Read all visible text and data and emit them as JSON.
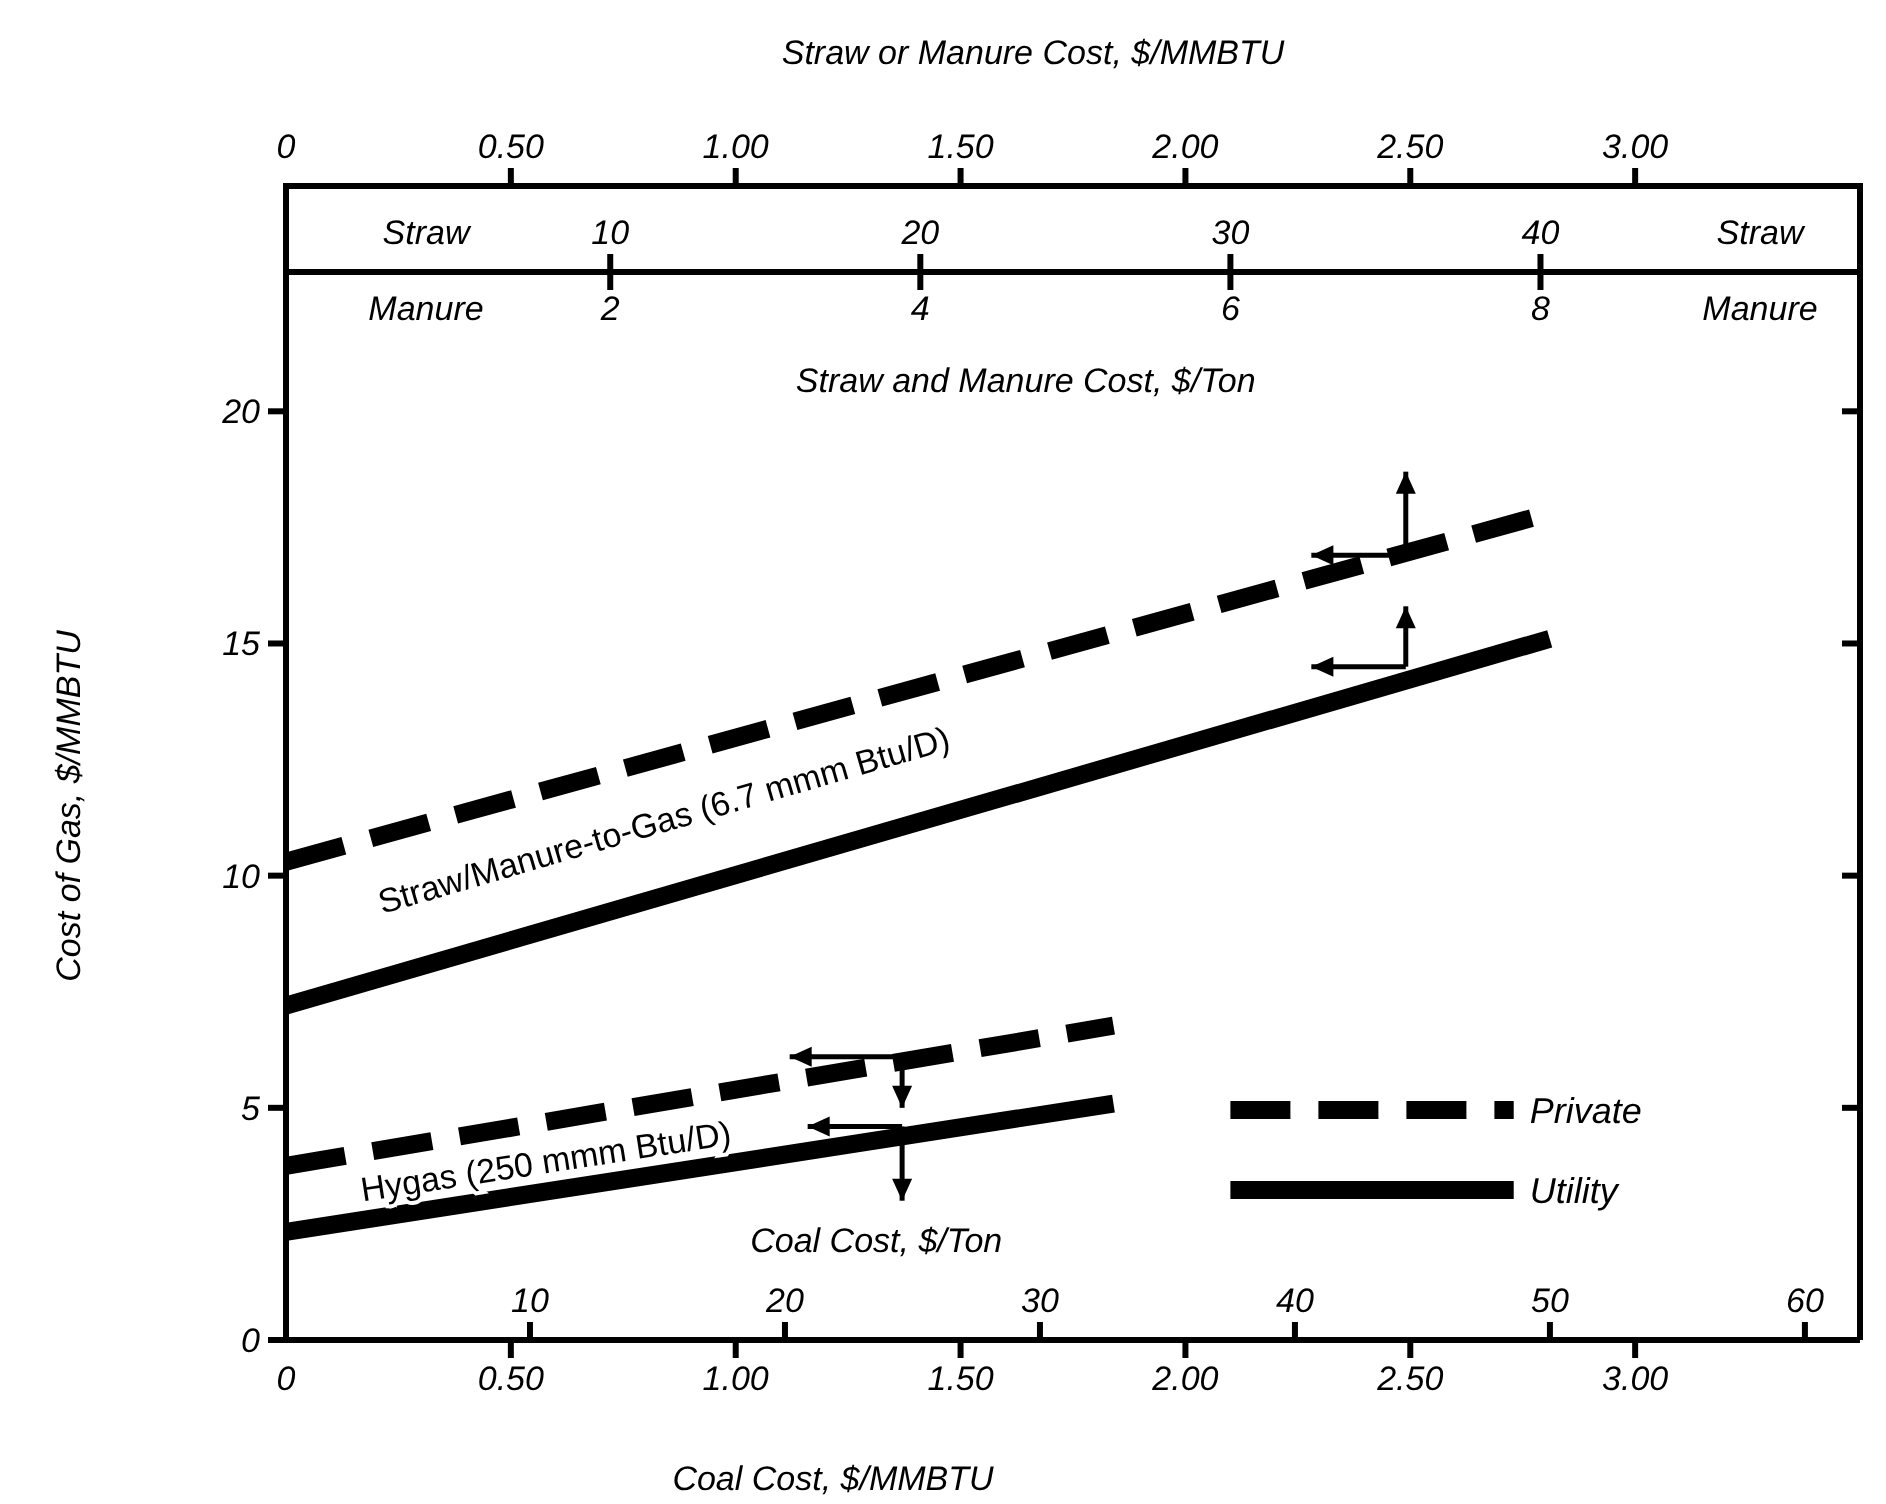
{
  "chart_data": {
    "type": "line",
    "xlabel": "Coal Cost, $/MMBTU",
    "ylabel": "Cost of Gas, $/MMBTU",
    "x2label": "Straw or Manure Cost, $/MMBTU",
    "xlim": [
      0,
      3.5
    ],
    "xticks": [
      0,
      {
        "value": 0.5,
        "label": "0.50"
      },
      {
        "value": 1,
        "label": "1.00"
      },
      {
        "value": 1.5,
        "label": "1.50"
      },
      {
        "value": 2,
        "label": "2.00"
      },
      {
        "value": 2.5,
        "label": "2.50"
      },
      {
        "value": 3,
        "label": "3.00"
      }
    ],
    "x2lim": [
      0,
      3.5
    ],
    "x2ticks": [
      0,
      {
        "value": 0.5,
        "label": "0.50"
      },
      {
        "value": 1,
        "label": "1.00"
      },
      {
        "value": 1.5,
        "label": "1.50"
      },
      {
        "value": 2,
        "label": "2.00"
      },
      {
        "value": 2.5,
        "label": "2.50"
      },
      {
        "value": 3,
        "label": "3.00"
      }
    ],
    "ylim": [
      0,
      23
    ],
    "yticks": [
      0,
      5,
      10,
      15,
      20
    ],
    "legend": "bottom right",
    "annotations": [
      "Straw and Manure Cost, $/Ton",
      "Straw/Manure-to-Gas (6.7 mmm Btu/D)",
      "Hygas (250 mmm Btu/D)",
      "Coal Cost, $/Ton",
      "Straw",
      "Manure",
      "10",
      "20",
      "30",
      "40",
      "50",
      "60",
      "10",
      "20",
      "30",
      "40",
      "2",
      "4",
      "6",
      "8"
    ],
    "series": [
      {
        "name": "Private",
        "color": "#000000",
        "line_style": "dashed",
        "x": [
          0,
          2.77
        ],
        "values": [
          10.3,
          17.7
        ]
      },
      {
        "name": "Utility",
        "color": "#000000",
        "line_style": "solid",
        "x": [
          0,
          2.81
        ],
        "values": [
          7.2,
          15.1
        ]
      },
      {
        "color": "#000000",
        "line_style": "dashed",
        "x": [
          0,
          1.84
        ],
        "values": [
          3.75,
          6.77
        ]
      },
      {
        "color": "#000000",
        "line_style": "solid",
        "x": [
          0,
          1.84
        ],
        "values": [
          2.33,
          5.09
        ]
      }
    ]
  }
}
